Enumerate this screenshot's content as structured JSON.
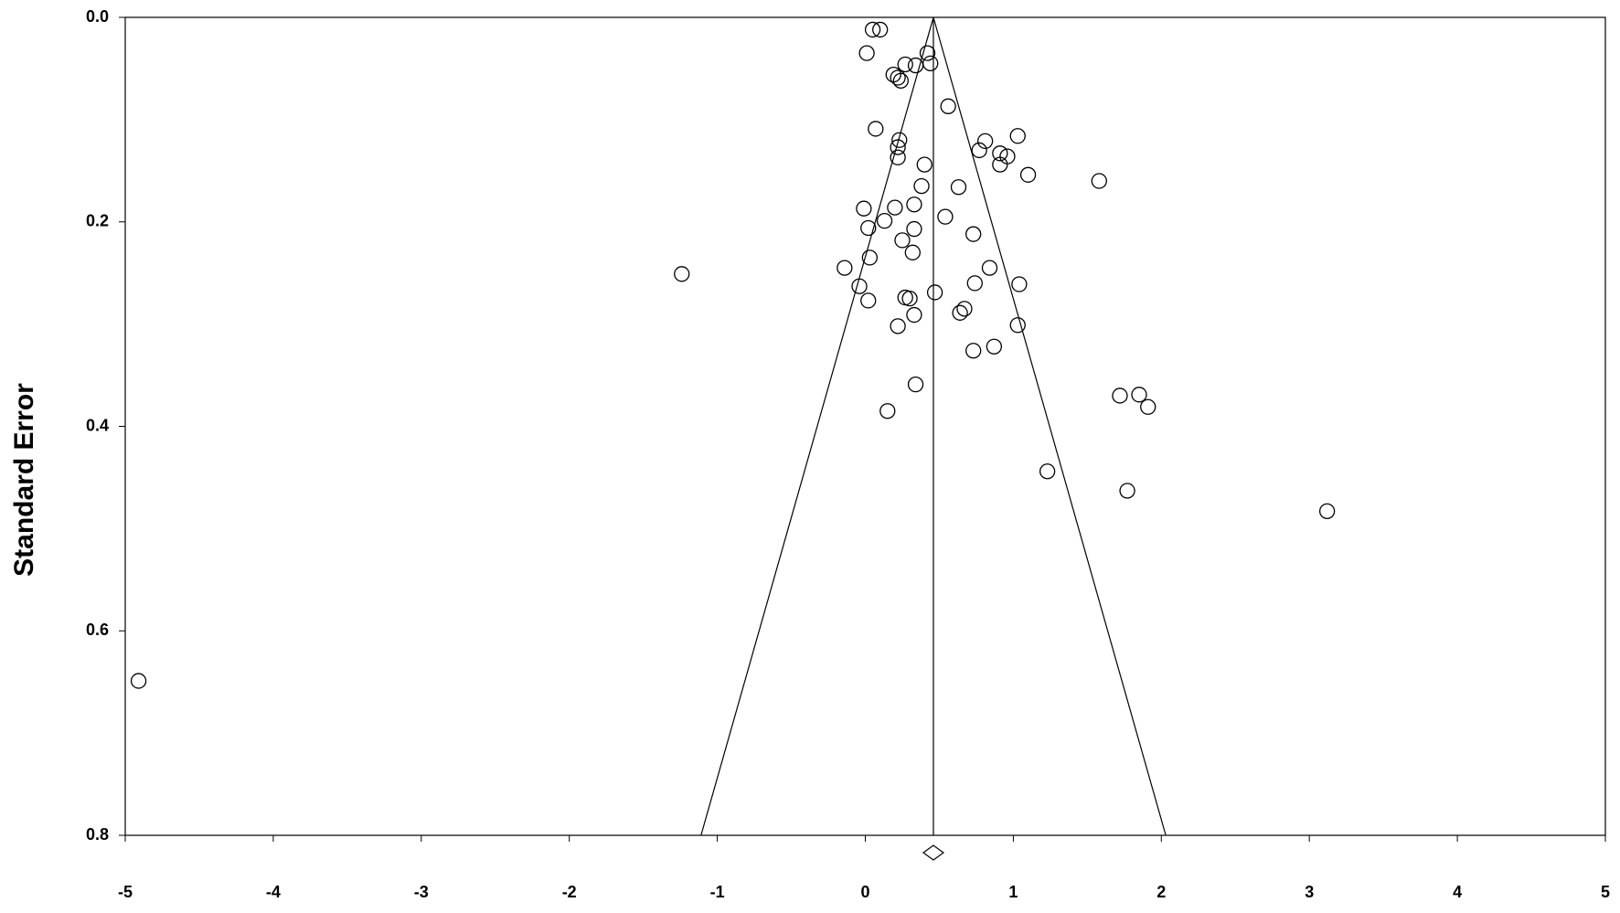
{
  "chart_data": {
    "type": "scatter",
    "y_title": "Standard Error",
    "x": [
      0.05,
      0.1,
      0.01,
      0.42,
      0.44,
      0.27,
      0.34,
      0.19,
      0.22,
      0.24,
      0.56,
      0.07,
      1.03,
      0.81,
      0.23,
      0.22,
      0.77,
      0.91,
      0.96,
      0.22,
      0.91,
      0.4,
      1.1,
      1.58,
      0.63,
      0.38,
      0.33,
      0.2,
      -0.01,
      0.54,
      0.13,
      0.33,
      0.02,
      0.73,
      0.25,
      0.32,
      0.03,
      -0.14,
      0.84,
      -1.24,
      0.74,
      1.04,
      -0.04,
      0.47,
      0.27,
      0.3,
      0.02,
      0.67,
      0.64,
      0.33,
      0.22,
      1.03,
      0.87,
      0.73,
      0.34,
      1.72,
      1.85,
      1.91,
      0.15,
      1.23,
      1.77,
      3.12,
      -4.91
    ],
    "values": [
      0.012,
      0.012,
      0.035,
      0.035,
      0.045,
      0.046,
      0.047,
      0.056,
      0.059,
      0.062,
      0.087,
      0.109,
      0.116,
      0.121,
      0.12,
      0.127,
      0.13,
      0.133,
      0.136,
      0.137,
      0.144,
      0.144,
      0.154,
      0.16,
      0.166,
      0.165,
      0.183,
      0.186,
      0.187,
      0.195,
      0.199,
      0.207,
      0.206,
      0.212,
      0.218,
      0.23,
      0.235,
      0.245,
      0.245,
      0.251,
      0.26,
      0.261,
      0.263,
      0.269,
      0.274,
      0.275,
      0.277,
      0.285,
      0.289,
      0.291,
      0.302,
      0.301,
      0.322,
      0.326,
      0.359,
      0.37,
      0.369,
      0.381,
      0.385,
      0.444,
      0.463,
      0.483,
      0.649
    ],
    "color": "#000000",
    "pooled_estimate": 0.46,
    "funnel_limits_at_bottom": [
      -1.11,
      2.03
    ],
    "xlim": [
      -5,
      5
    ],
    "xticks": [
      -5,
      -4,
      -3,
      -2,
      -1,
      0,
      1,
      2,
      3,
      4,
      5
    ],
    "ylim": [
      0,
      0.8
    ],
    "yticks": [
      {
        "value": 0,
        "label": "0.0"
      },
      0.2,
      0.4,
      0.6,
      0.8
    ],
    "y_inverted": true,
    "grid": false
  }
}
